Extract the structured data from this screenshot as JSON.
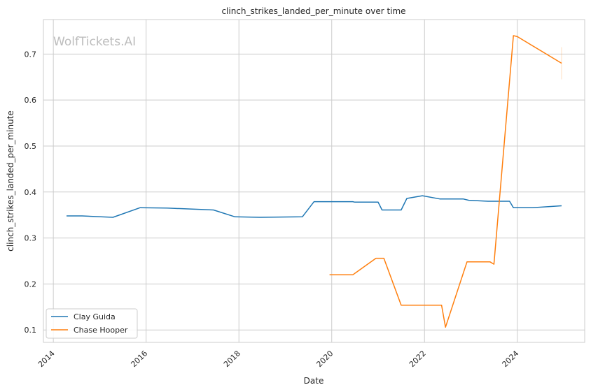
{
  "chart_data": {
    "type": "line",
    "title": "clinch_strikes_landed_per_minute over time",
    "xlabel": "Date",
    "ylabel": "clinch_strikes_landed_per_minute",
    "watermark": "WolfTickets.AI",
    "xlim": [
      "2013-10-15",
      "2025-06-15"
    ],
    "ylim": [
      0.073,
      0.775
    ],
    "x_ticks": [
      "2014",
      "2016",
      "2018",
      "2020",
      "2022",
      "2024"
    ],
    "y_ticks": [
      "0.1",
      "0.2",
      "0.3",
      "0.4",
      "0.5",
      "0.6",
      "0.7"
    ],
    "grid": true,
    "legend_position": "lower-left",
    "series": [
      {
        "name": "Clay Guida",
        "color": "#1f77b4",
        "points": [
          [
            "2014-04-15",
            0.348
          ],
          [
            "2014-08-15",
            0.348
          ],
          [
            "2015-04-15",
            0.345
          ],
          [
            "2015-11-15",
            0.366
          ],
          [
            "2016-06-15",
            0.365
          ],
          [
            "2017-06-15",
            0.361
          ],
          [
            "2017-12-01",
            0.346
          ],
          [
            "2018-06-15",
            0.345
          ],
          [
            "2019-05-15",
            0.346
          ],
          [
            "2019-08-15",
            0.379
          ],
          [
            "2020-06-15",
            0.379
          ],
          [
            "2020-07-01",
            0.378
          ],
          [
            "2021-01-01",
            0.378
          ],
          [
            "2021-02-01",
            0.361
          ],
          [
            "2021-07-01",
            0.361
          ],
          [
            "2021-08-15",
            0.386
          ],
          [
            "2021-12-15",
            0.392
          ],
          [
            "2022-05-01",
            0.385
          ],
          [
            "2022-11-01",
            0.385
          ],
          [
            "2022-12-15",
            0.382
          ],
          [
            "2023-05-15",
            0.38
          ],
          [
            "2023-11-01",
            0.38
          ],
          [
            "2023-12-01",
            0.366
          ],
          [
            "2024-05-01",
            0.366
          ],
          [
            "2024-12-15",
            0.37
          ]
        ]
      },
      {
        "name": "Chase Hooper",
        "color": "#ff7f0e",
        "points": [
          [
            "2019-12-15",
            0.22
          ],
          [
            "2020-06-15",
            0.22
          ],
          [
            "2020-12-15",
            0.256
          ],
          [
            "2021-02-15",
            0.256
          ],
          [
            "2021-07-01",
            0.154
          ],
          [
            "2022-05-15",
            0.154
          ],
          [
            "2022-06-15",
            0.106
          ],
          [
            "2022-12-01",
            0.248
          ],
          [
            "2023-06-01",
            0.248
          ],
          [
            "2023-07-01",
            0.243
          ],
          [
            "2023-12-01",
            0.74
          ],
          [
            "2024-01-01",
            0.738
          ],
          [
            "2024-12-15",
            0.68
          ]
        ]
      }
    ]
  }
}
